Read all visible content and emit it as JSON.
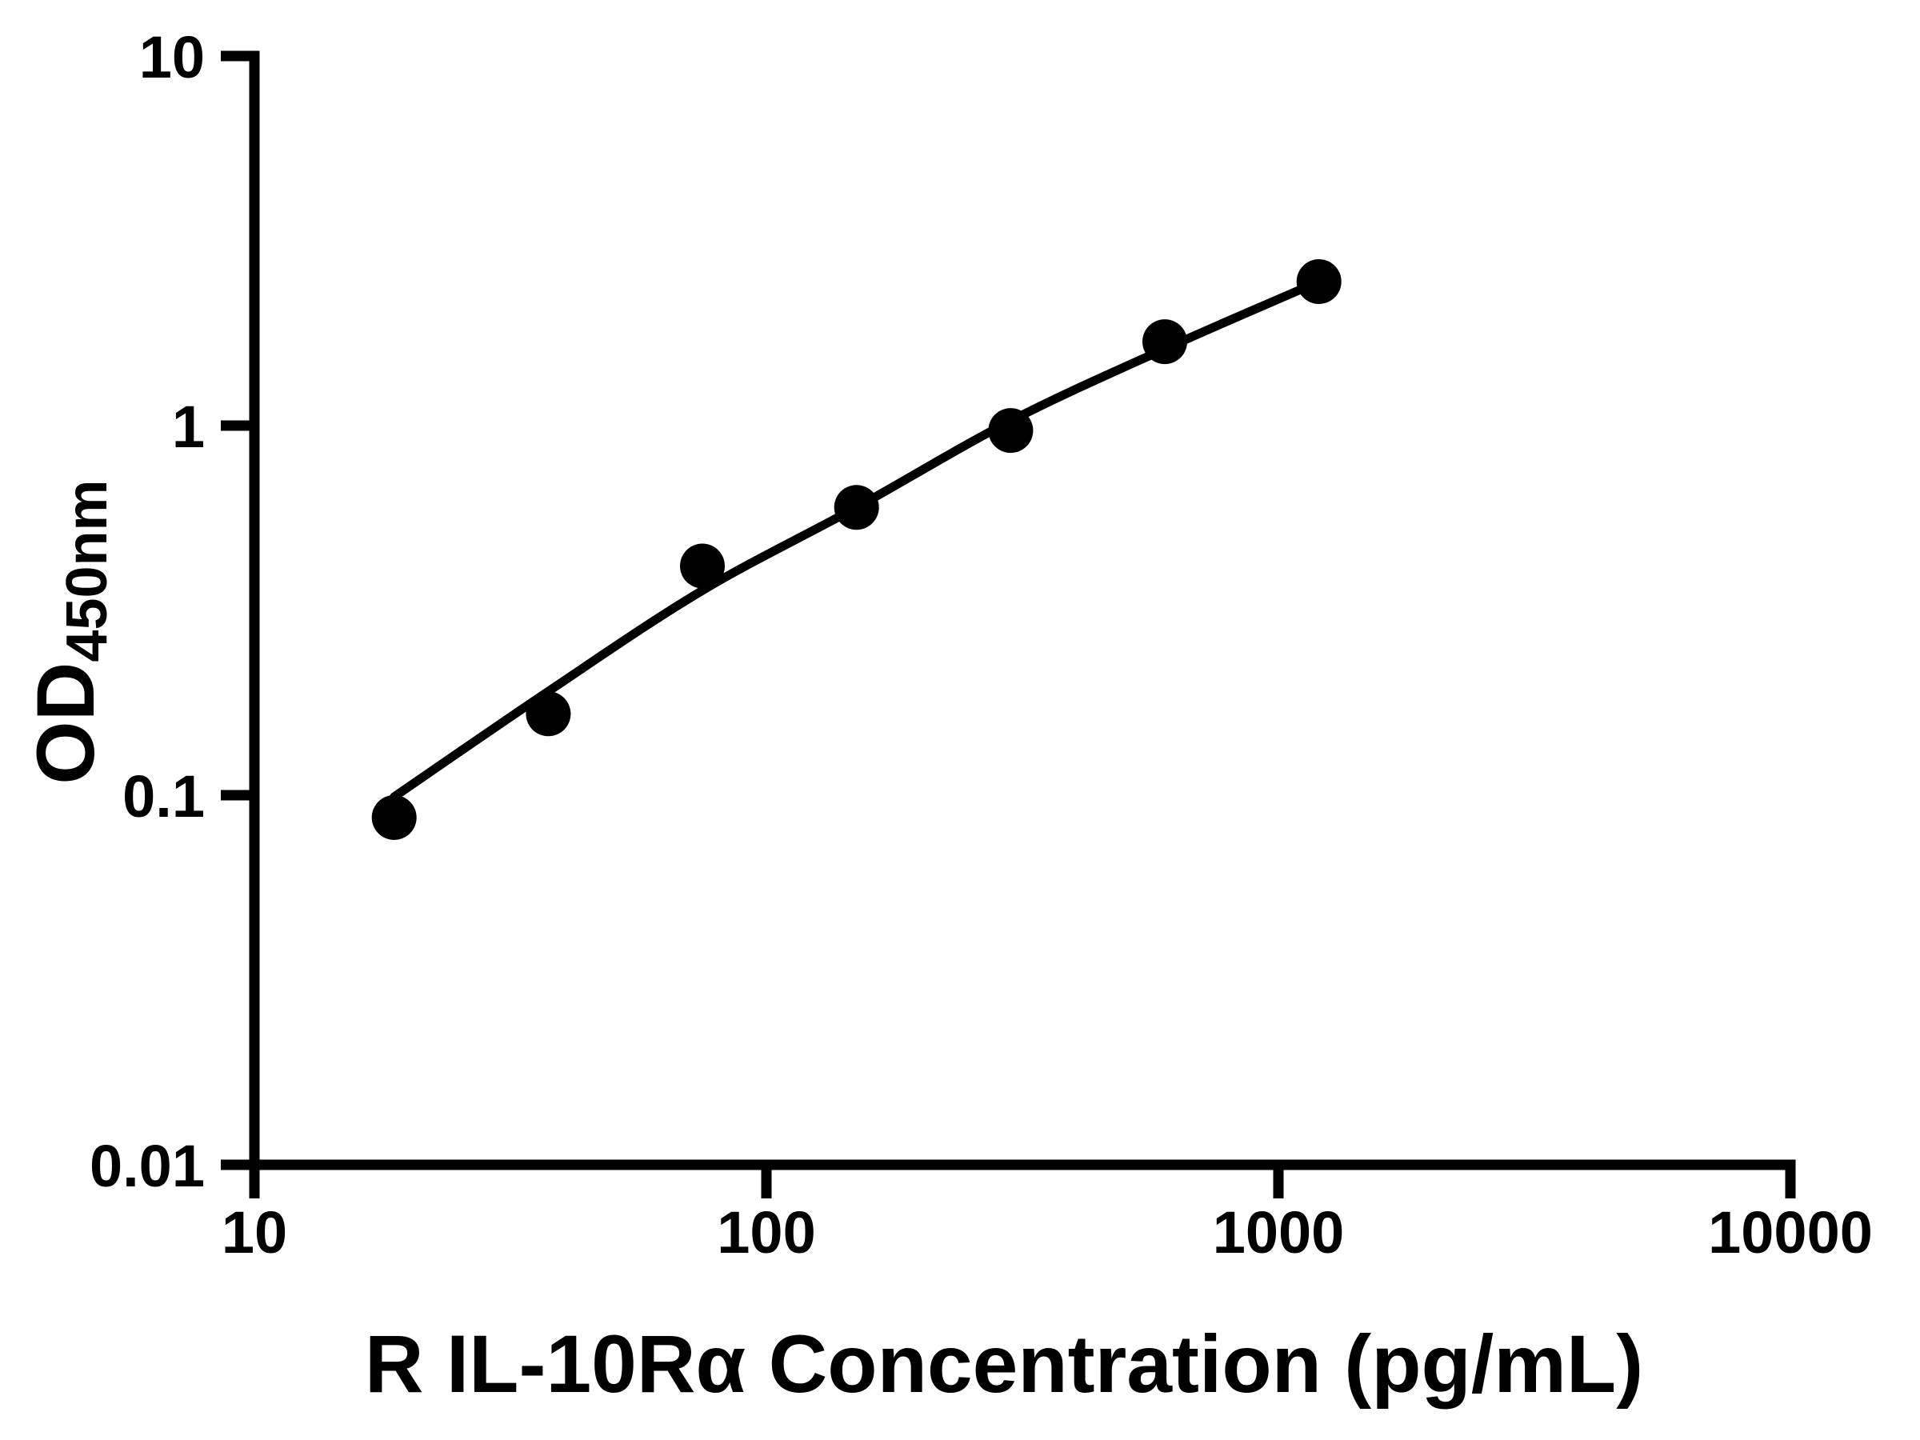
{
  "figure": {
    "background": "#ffffff",
    "ink_color": "#000000"
  },
  "chart_data": {
    "type": "scatter",
    "title": "",
    "xlabel": "R IL-10Rα Concentration (pg/mL)",
    "ylabel_main": "OD",
    "ylabel_sub": "450nm",
    "x_scale": "log",
    "y_scale": "log",
    "xlim": [
      10,
      10000
    ],
    "ylim": [
      0.01,
      10
    ],
    "grid": false,
    "legend": null,
    "x_ticks": [
      {
        "value": 10,
        "label": "10"
      },
      {
        "value": 100,
        "label": "100"
      },
      {
        "value": 1000,
        "label": "1000"
      },
      {
        "value": 10000,
        "label": "10000"
      }
    ],
    "y_ticks": [
      {
        "value": 10,
        "label": "10"
      },
      {
        "value": 1,
        "label": "1"
      },
      {
        "value": 0.1,
        "label": "0.1"
      },
      {
        "value": 0.01,
        "label": "0.01"
      }
    ],
    "series": [
      {
        "name": "standard-points",
        "marker": "filled-circle",
        "color": "#000000",
        "points": [
          {
            "x": 18.75,
            "y": 0.087
          },
          {
            "x": 37.5,
            "y": 0.166
          },
          {
            "x": 75,
            "y": 0.417
          },
          {
            "x": 150,
            "y": 0.601
          },
          {
            "x": 300,
            "y": 0.97
          },
          {
            "x": 600,
            "y": 1.687
          },
          {
            "x": 1200,
            "y": 2.452
          }
        ]
      }
    ],
    "fit_curve": {
      "name": "standard-curve-fit",
      "color": "#000000",
      "points": [
        {
          "x": 18.75,
          "y": 0.099
        },
        {
          "x": 37.5,
          "y": 0.191
        },
        {
          "x": 75,
          "y": 0.358
        },
        {
          "x": 150,
          "y": 0.601
        },
        {
          "x": 300,
          "y": 1.03
        },
        {
          "x": 600,
          "y": 1.613
        },
        {
          "x": 1200,
          "y": 2.452
        }
      ]
    }
  }
}
